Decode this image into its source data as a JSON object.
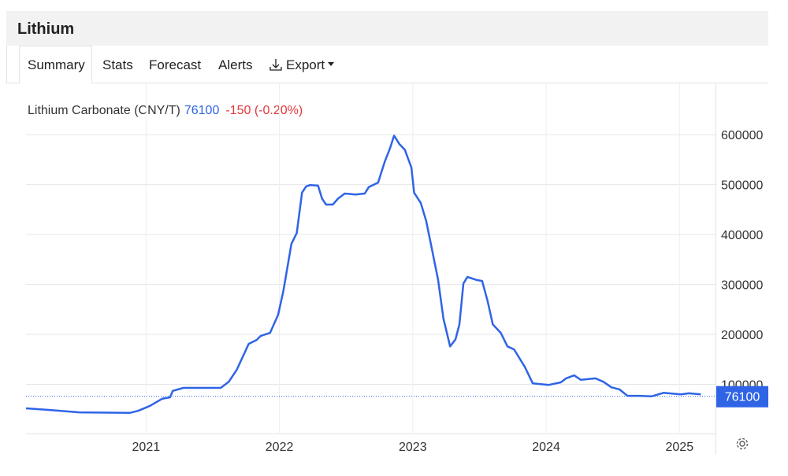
{
  "header": {
    "title": "Lithium"
  },
  "tabs": [
    "Summary",
    "Stats",
    "Forecast",
    "Alerts",
    "Export"
  ],
  "chart_data": {
    "type": "line",
    "series": [
      {
        "name": "Lithium Carbonate (CNY/T)",
        "color": "#2f64e6",
        "values": [
          52000,
          49000,
          44000,
          43000,
          47000,
          57000,
          71000,
          74000,
          87000,
          93000,
          93000,
          105000,
          129000,
          181000,
          189000,
          197000,
          203000,
          239000,
          287000,
          381000,
          403000,
          484000,
          496000,
          499000,
          498000,
          472000,
          460000,
          460000,
          472000,
          482000,
          480000,
          482000,
          495000,
          504000,
          546000,
          573000,
          598000,
          581000,
          570000,
          534000,
          484000,
          463000,
          428000,
          389000,
          309000,
          232000,
          176000,
          190000,
          220000,
          302000,
          315000,
          309000,
          307000,
          268000,
          220000,
          203000,
          176000,
          170000,
          135000,
          102000,
          99000,
          104000,
          112000,
          118000,
          109000,
          112000,
          105000,
          94000,
          90000,
          77000,
          77000,
          76000,
          83000,
          80000,
          82000,
          80000
        ]
      }
    ],
    "x": [
      2020.1,
      2020.26,
      2020.5,
      2020.88,
      2020.94,
      2021.03,
      2021.12,
      2021.18,
      2021.2,
      2021.28,
      2021.56,
      2021.62,
      2021.68,
      2021.77,
      2021.83,
      2021.86,
      2021.93,
      2021.99,
      2022.03,
      2022.09,
      2022.13,
      2022.17,
      2022.2,
      2022.23,
      2022.29,
      2022.32,
      2022.35,
      2022.4,
      2022.44,
      2022.49,
      2022.57,
      2022.64,
      2022.67,
      2022.74,
      2022.79,
      2022.83,
      2022.86,
      2022.9,
      2022.94,
      2022.99,
      2023.01,
      2023.06,
      2023.1,
      2023.13,
      2023.19,
      2023.23,
      2023.28,
      2023.32,
      2023.35,
      2023.38,
      2023.41,
      2023.48,
      2023.52,
      2023.56,
      2023.6,
      2023.66,
      2023.71,
      2023.76,
      2023.84,
      2023.9,
      2024.02,
      2024.11,
      2024.15,
      2024.21,
      2024.26,
      2024.37,
      2024.43,
      2024.49,
      2024.55,
      2024.61,
      2024.7,
      2024.79,
      2024.88,
      2025.01,
      2025.07,
      2025.16
    ],
    "last_value": 76100,
    "change": "-150 (-0.20%)",
    "last_value_color": "#2f64e6",
    "change_color": "#e5383b",
    "xlim": [
      2020.1,
      2025.27
    ],
    "xticks": [
      2021,
      2022,
      2023,
      2024,
      2025
    ],
    "ylim": [
      0,
      690000
    ],
    "yticks": [
      100000,
      200000,
      300000,
      400000,
      500000,
      600000
    ],
    "grid": true
  }
}
